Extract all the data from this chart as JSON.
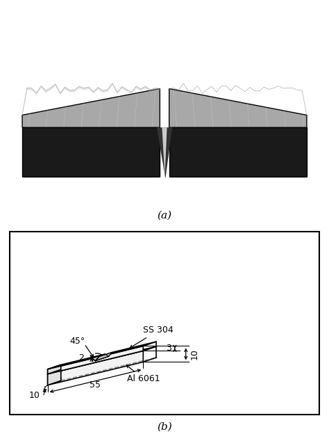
{
  "fig_width": 4.74,
  "fig_height": 6.34,
  "dpi": 100,
  "label_a": "(a)",
  "label_b": "(b)",
  "dim_length": "55",
  "dim_width": "10",
  "dim_height_total": "10",
  "dim_ss_height": "3",
  "dim_notch_depth": "2",
  "dim_notch_angle": "45°",
  "label_ss": "SS 304",
  "label_al": "Al 6061",
  "bg_color": "#ffffff",
  "photo_bg": "#9B1C1C",
  "specimen_silver": "#a8a8a8",
  "specimen_dark": "#1a1a1a",
  "specimen_mid": "#555555",
  "line_color": "#000000"
}
